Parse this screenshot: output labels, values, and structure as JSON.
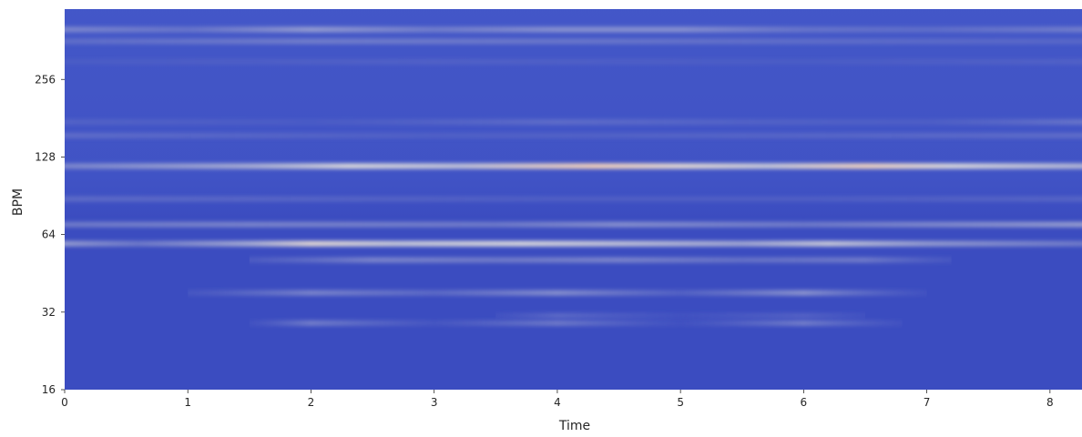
{
  "chart_data": {
    "type": "heatmap",
    "title": "",
    "xlabel": "Time",
    "ylabel": "BPM",
    "y_scale": "log2",
    "xlim": [
      0,
      8.26
    ],
    "ylim": [
      16,
      480
    ],
    "x_ticks": [
      0,
      1,
      2,
      3,
      4,
      5,
      6,
      7,
      8
    ],
    "y_ticks": [
      16,
      32,
      64,
      128,
      256
    ],
    "grid": false,
    "colormap": "coolwarm",
    "colors": {
      "background": "#3b4cc0",
      "low": "#3b4cc0",
      "mid": "#dddcdc",
      "high": "#f6d0b6"
    },
    "ridges": [
      {
        "bpm": 118,
        "t_start": 0,
        "t_end": 8.26,
        "intensity": [
          [
            0,
            0.45
          ],
          [
            1.5,
            0.62
          ],
          [
            2.3,
            0.78
          ],
          [
            3.2,
            0.7
          ],
          [
            4.3,
            0.98
          ],
          [
            5.0,
            0.85
          ],
          [
            5.7,
            0.72
          ],
          [
            6.5,
            0.95
          ],
          [
            7.2,
            0.78
          ],
          [
            8.26,
            0.65
          ]
        ]
      },
      {
        "bpm": 59,
        "t_start": 0,
        "t_end": 8.26,
        "intensity": [
          [
            0,
            0.55
          ],
          [
            0.6,
            0.4
          ],
          [
            1.5,
            0.62
          ],
          [
            2.0,
            0.85
          ],
          [
            2.7,
            0.72
          ],
          [
            3.7,
            0.78
          ],
          [
            4.5,
            0.7
          ],
          [
            5.5,
            0.6
          ],
          [
            6.2,
            0.72
          ],
          [
            7.0,
            0.55
          ],
          [
            8.26,
            0.4
          ]
        ]
      },
      {
        "bpm": 70,
        "t_start": 0,
        "t_end": 8.26,
        "intensity": [
          [
            0,
            0.4
          ],
          [
            1.5,
            0.45
          ],
          [
            3.5,
            0.4
          ],
          [
            4.5,
            0.5
          ],
          [
            6.0,
            0.4
          ],
          [
            8.26,
            0.55
          ]
        ]
      },
      {
        "bpm": 51,
        "t_start": 1.5,
        "t_end": 7.2,
        "intensity": [
          [
            1.5,
            0.2
          ],
          [
            2.5,
            0.45
          ],
          [
            3.5,
            0.4
          ],
          [
            4.5,
            0.45
          ],
          [
            5.5,
            0.35
          ],
          [
            6.5,
            0.4
          ],
          [
            7.2,
            0.15
          ]
        ]
      },
      {
        "bpm": 38,
        "t_start": 1.0,
        "t_end": 7.0,
        "intensity": [
          [
            1.0,
            0.15
          ],
          [
            2.0,
            0.45
          ],
          [
            3.0,
            0.3
          ],
          [
            4.0,
            0.5
          ],
          [
            5.0,
            0.25
          ],
          [
            6.0,
            0.52
          ],
          [
            7.0,
            0.1
          ]
        ]
      },
      {
        "bpm": 29,
        "t_start": 1.5,
        "t_end": 6.8,
        "intensity": [
          [
            1.5,
            0.1
          ],
          [
            2.0,
            0.42
          ],
          [
            3.0,
            0.15
          ],
          [
            4.0,
            0.4
          ],
          [
            5.0,
            0.1
          ],
          [
            6.0,
            0.42
          ],
          [
            6.8,
            0.1
          ]
        ]
      },
      {
        "bpm": 31,
        "t_start": 3.5,
        "t_end": 6.5,
        "intensity": [
          [
            3.5,
            0.1
          ],
          [
            4.0,
            0.3
          ],
          [
            5.0,
            0.1
          ],
          [
            6.0,
            0.25
          ],
          [
            6.5,
            0.1
          ]
        ]
      },
      {
        "bpm": 88,
        "t_start": 0,
        "t_end": 8.26,
        "intensity": [
          [
            0,
            0.3
          ],
          [
            2.0,
            0.25
          ],
          [
            4.0,
            0.2
          ],
          [
            6.0,
            0.2
          ],
          [
            8.26,
            0.25
          ]
        ]
      },
      {
        "bpm": 175,
        "t_start": 0,
        "t_end": 8.26,
        "intensity": [
          [
            0,
            0.22
          ],
          [
            2.0,
            0.15
          ],
          [
            4.0,
            0.3
          ],
          [
            5.5,
            0.22
          ],
          [
            7.0,
            0.18
          ],
          [
            8.26,
            0.35
          ]
        ]
      },
      {
        "bpm": 155,
        "t_start": 0,
        "t_end": 8.26,
        "intensity": [
          [
            0,
            0.3
          ],
          [
            3.0,
            0.2
          ],
          [
            6.0,
            0.25
          ],
          [
            8.26,
            0.3
          ]
        ]
      },
      {
        "bpm": 400,
        "t_start": 0,
        "t_end": 8.26,
        "intensity": [
          [
            0,
            0.45
          ],
          [
            1.0,
            0.35
          ],
          [
            2.0,
            0.55
          ],
          [
            3.0,
            0.4
          ],
          [
            4.0,
            0.5
          ],
          [
            5.0,
            0.5
          ],
          [
            6.0,
            0.35
          ],
          [
            7.0,
            0.3
          ],
          [
            8.26,
            0.4
          ]
        ]
      },
      {
        "bpm": 360,
        "t_start": 0,
        "t_end": 8.26,
        "intensity": [
          [
            0,
            0.3
          ],
          [
            2.0,
            0.4
          ],
          [
            4.5,
            0.35
          ],
          [
            6.0,
            0.3
          ],
          [
            8.26,
            0.25
          ]
        ]
      },
      {
        "bpm": 300,
        "t_start": 0,
        "t_end": 8.26,
        "intensity": [
          [
            0,
            0.15
          ],
          [
            3.0,
            0.2
          ],
          [
            6.0,
            0.15
          ],
          [
            8.26,
            0.2
          ]
        ]
      }
    ]
  }
}
